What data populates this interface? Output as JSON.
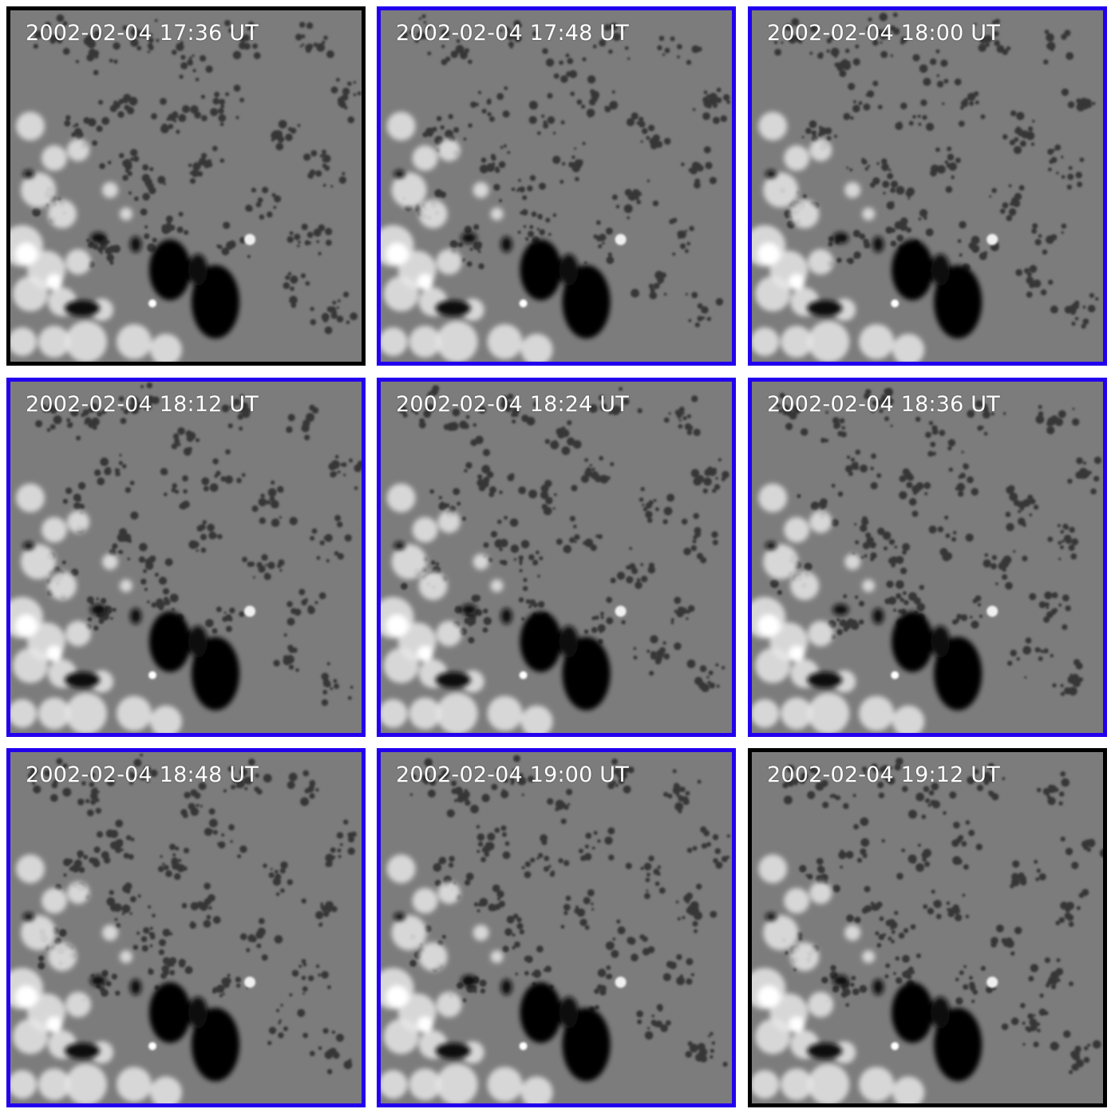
{
  "colors": {
    "black_frame": "#000000",
    "blue_frame": "#2200ee",
    "field_gray": "#7c7c7c",
    "stamp_text": "#ffffff"
  },
  "panels": [
    {
      "timestamp": "2002-02-04 17:36 UT",
      "frame": "black"
    },
    {
      "timestamp": "2002-02-04 17:48 UT",
      "frame": "blue"
    },
    {
      "timestamp": "2002-02-04 18:00 UT",
      "frame": "blue"
    },
    {
      "timestamp": "2002-02-04 18:12 UT",
      "frame": "blue"
    },
    {
      "timestamp": "2002-02-04 18:24 UT",
      "frame": "blue"
    },
    {
      "timestamp": "2002-02-04 18:36 UT",
      "frame": "blue"
    },
    {
      "timestamp": "2002-02-04 18:48 UT",
      "frame": "blue"
    },
    {
      "timestamp": "2002-02-04 19:00 UT",
      "frame": "blue"
    },
    {
      "timestamp": "2002-02-04 19:12 UT",
      "frame": "black"
    }
  ]
}
